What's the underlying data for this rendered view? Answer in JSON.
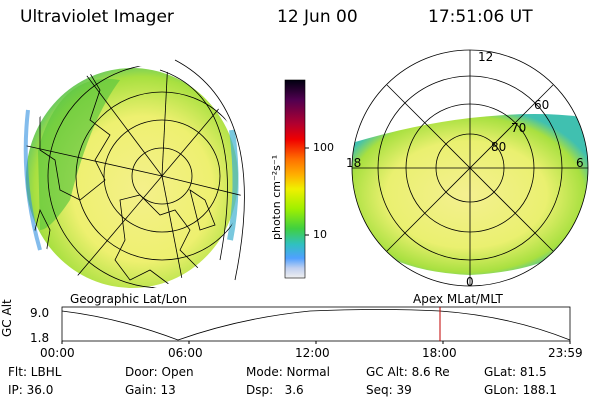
{
  "header": {
    "instrument": "Ultraviolet Imager",
    "date": "12 Jun 00",
    "time": "17:51:06 UT"
  },
  "colorbar": {
    "label": "photon cm⁻²s⁻¹",
    "ticks": [
      "100",
      "10"
    ],
    "scale": "log",
    "colors": [
      "#000010",
      "#500050",
      "#b00030",
      "#f00000",
      "#ff7000",
      "#ffb000",
      "#f0f000",
      "#a0f000",
      "#40d040",
      "#30c0c0",
      "#50a0ff",
      "#c0d0f0",
      "#f0f0f0"
    ]
  },
  "geo_panel": {
    "caption": "Geographic Lat/Lon"
  },
  "mag_panel": {
    "caption": "Apex MLat/MLT",
    "mlt_labels": [
      "12",
      "18",
      "6",
      "0"
    ],
    "mlat_labels": [
      "60",
      "70",
      "80"
    ]
  },
  "altitude_plot": {
    "ylabel": "GC Alt",
    "y_ticks": [
      "9.0",
      "1.8"
    ],
    "x_ticks": [
      "00:00",
      "06:00",
      "12:00",
      "18:00",
      "23:59"
    ],
    "current_time_marker": "17:51",
    "marker_color": "#c00000"
  },
  "status": {
    "filter": "Flt: LBHL",
    "door": "Door: Open",
    "mode": "Mode: Normal",
    "gc_alt": "GC Alt: 8.6 Re",
    "glat": "GLat: 81.5",
    "ip": "IP: 36.0",
    "gain": "Gain: 13",
    "dsp": "Dsp:   3.6",
    "seq": "Seq: 39",
    "glon": "GLon: 188.1"
  }
}
